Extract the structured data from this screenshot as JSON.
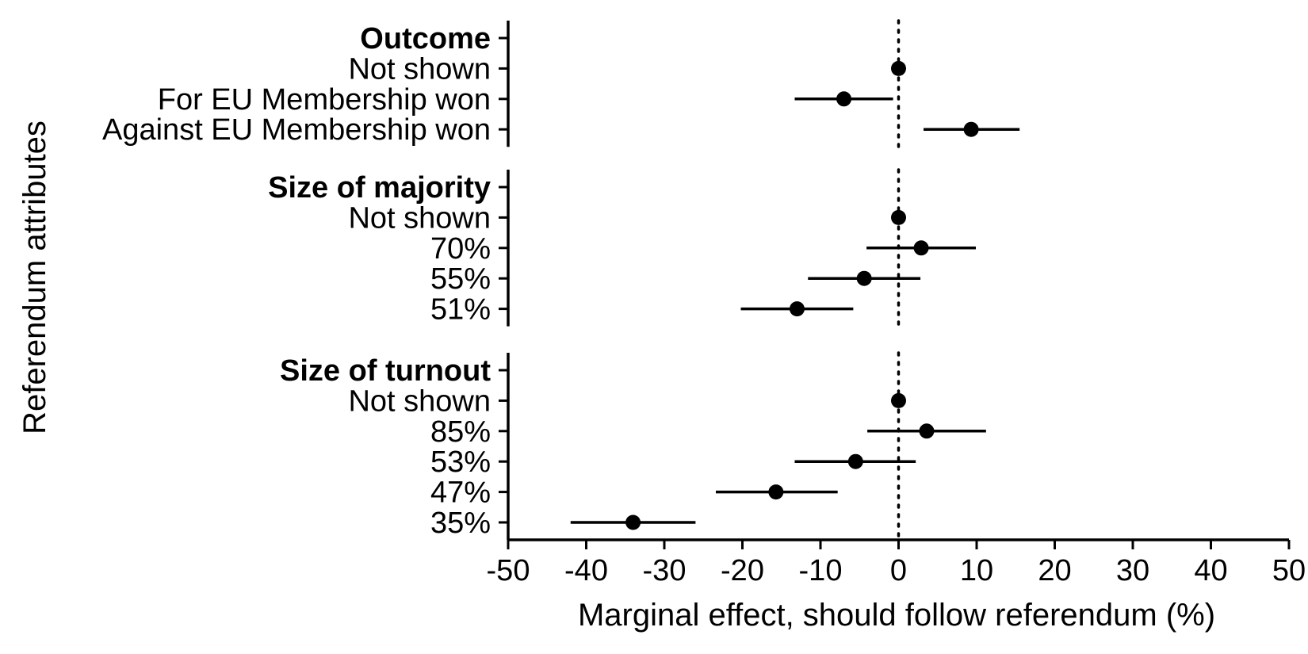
{
  "chart_data": {
    "type": "dot-errorbar",
    "xlabel": "Marginal effect, should follow referendum (%)",
    "ylabel": "Referendum attributes",
    "xlim": [
      -50,
      50
    ],
    "xticks": [
      "-50",
      "-40",
      "-30",
      "-20",
      "-10",
      "0",
      "10",
      "20",
      "30",
      "40",
      "50"
    ],
    "reference_line": 0,
    "groups": [
      {
        "title": "Outcome",
        "items": [
          {
            "label": "Not shown",
            "estimate": 0,
            "lower": 0,
            "upper": 0
          },
          {
            "label": "For EU Membership won",
            "estimate": -7,
            "lower": -13.3,
            "upper": -0.7
          },
          {
            "label": "Against EU Membership won",
            "estimate": 9.3,
            "lower": 3.2,
            "upper": 15.5
          }
        ]
      },
      {
        "title": "Size of majority",
        "items": [
          {
            "label": "Not shown",
            "estimate": 0,
            "lower": 0,
            "upper": 0
          },
          {
            "label": "70%",
            "estimate": 2.9,
            "lower": -4.1,
            "upper": 9.9
          },
          {
            "label": "55%",
            "estimate": -4.4,
            "lower": -11.6,
            "upper": 2.8
          },
          {
            "label": "51%",
            "estimate": -13.0,
            "lower": -20.2,
            "upper": -5.8
          }
        ]
      },
      {
        "title": "Size of turnout",
        "items": [
          {
            "label": "Not shown",
            "estimate": 0,
            "lower": 0,
            "upper": 0
          },
          {
            "label": "85%",
            "estimate": 3.6,
            "lower": -4.0,
            "upper": 11.2
          },
          {
            "label": "53%",
            "estimate": -5.5,
            "lower": -13.3,
            "upper": 2.2
          },
          {
            "label": "47%",
            "estimate": -15.7,
            "lower": -23.4,
            "upper": -7.8
          },
          {
            "label": "35%",
            "estimate": -34.0,
            "lower": -42.0,
            "upper": -26.0
          }
        ]
      }
    ],
    "colors": {
      "points": "#000000",
      "reference_line": "#000000"
    }
  }
}
